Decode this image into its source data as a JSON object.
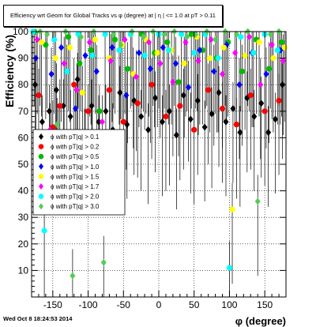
{
  "chart_data": {
    "type": "scatter",
    "title": "Efficiency wrt Geom for Global Tracks vs φ (degree) at |  η  | <= 1.0 at pT > 0.11",
    "xlabel": "φ (degree)",
    "ylabel": "Efficiency (%)",
    "xlim": [
      -180,
      180
    ],
    "ylim": [
      0,
      100
    ],
    "xticks": [
      -150,
      -100,
      -50,
      0,
      50,
      100,
      150
    ],
    "yticks": [
      10,
      20,
      30,
      40,
      50,
      60,
      70,
      80,
      90,
      100
    ],
    "grid": true,
    "legend_position": "left-middle",
    "series": [
      {
        "name": "ϕ with pT|q| > 0.1",
        "color": "#000000",
        "marker": "diamond",
        "points": [
          [
            -175,
            80
          ],
          [
            -165,
            66
          ],
          [
            -155,
            70
          ],
          [
            -145,
            78
          ],
          [
            -135,
            72
          ],
          [
            -125,
            68
          ],
          [
            -115,
            82
          ],
          [
            -105,
            61
          ],
          [
            -95,
            72
          ],
          [
            -85,
            66
          ],
          [
            -75,
            70
          ],
          [
            -65,
            63
          ],
          [
            -55,
            77
          ],
          [
            -45,
            65
          ],
          [
            -35,
            74
          ],
          [
            -25,
            68
          ],
          [
            -15,
            63
          ],
          [
            -5,
            75
          ],
          [
            5,
            66
          ],
          [
            15,
            70
          ],
          [
            25,
            61
          ],
          [
            35,
            76
          ],
          [
            45,
            67
          ],
          [
            55,
            74
          ],
          [
            65,
            64
          ],
          [
            75,
            69
          ],
          [
            85,
            77
          ],
          [
            95,
            66
          ],
          [
            105,
            71
          ],
          [
            115,
            62
          ],
          [
            125,
            75
          ],
          [
            135,
            68
          ],
          [
            145,
            73
          ],
          [
            155,
            62
          ],
          [
            165,
            67
          ],
          [
            175,
            80
          ]
        ]
      },
      {
        "name": "ϕ with pT|q| > 0.2",
        "color": "#ff0000",
        "marker": "circle",
        "points": [
          [
            -170,
            76
          ],
          [
            -150,
            64
          ],
          [
            -140,
            72
          ],
          [
            -120,
            80
          ],
          [
            -100,
            70
          ],
          [
            -85,
            61
          ],
          [
            -70,
            78
          ],
          [
            -50,
            66
          ],
          [
            -30,
            73
          ],
          [
            -10,
            80
          ],
          [
            10,
            68
          ],
          [
            30,
            72
          ],
          [
            50,
            63
          ],
          [
            70,
            78
          ],
          [
            90,
            71
          ],
          [
            110,
            65
          ],
          [
            130,
            76
          ],
          [
            150,
            70
          ],
          [
            170,
            74
          ]
        ]
      },
      {
        "name": "ϕ with pT|q| > 0.5",
        "color": "#00bb00",
        "marker": "circle",
        "points": [
          [
            -176,
            100
          ],
          [
            -160,
            95
          ],
          [
            -142,
            62
          ],
          [
            -128,
            98
          ],
          [
            -112,
            88
          ],
          [
            -96,
            93
          ],
          [
            -84,
            70
          ],
          [
            -62,
            97
          ],
          [
            -44,
            86
          ],
          [
            -24,
            99
          ],
          [
            -6,
            92
          ],
          [
            12,
            96
          ],
          [
            28,
            81
          ],
          [
            46,
            99
          ],
          [
            62,
            93
          ],
          [
            82,
            90
          ],
          [
            98,
            96
          ],
          [
            118,
            85
          ],
          [
            138,
            97
          ],
          [
            156,
            86
          ],
          [
            174,
            96
          ]
        ]
      },
      {
        "name": "ϕ with pT|q| > 1.0",
        "color": "#0000ff",
        "marker": "diamond",
        "points": [
          [
            -174,
            90
          ],
          [
            -152,
            84
          ],
          [
            -138,
            94
          ],
          [
            -118,
            71
          ],
          [
            -104,
            91
          ],
          [
            -88,
            85
          ],
          [
            -66,
            94
          ],
          [
            -46,
            76
          ],
          [
            -28,
            92
          ],
          [
            -12,
            86
          ],
          [
            6,
            94
          ],
          [
            24,
            88
          ],
          [
            42,
            79
          ],
          [
            58,
            93
          ],
          [
            78,
            85
          ],
          [
            96,
            95
          ],
          [
            114,
            80
          ],
          [
            132,
            92
          ],
          [
            152,
            84
          ],
          [
            172,
            93
          ]
        ]
      },
      {
        "name": "ϕ with pT|q| > 1.5",
        "color": "#ffff00",
        "marker": "circle",
        "points": [
          [
            -166,
            96
          ],
          [
            -146,
            90
          ],
          [
            -126,
            94
          ],
          [
            -108,
            77
          ],
          [
            -90,
            97
          ],
          [
            -70,
            90
          ],
          [
            -52,
            95
          ],
          [
            -36,
            84
          ],
          [
            -18,
            97
          ],
          [
            -2,
            92
          ],
          [
            18,
            93
          ],
          [
            36,
            88
          ],
          [
            54,
            98
          ],
          [
            72,
            90
          ],
          [
            92,
            94
          ],
          [
            104,
            33
          ],
          [
            122,
            91
          ],
          [
            142,
            96
          ],
          [
            162,
            90
          ],
          [
            178,
            94
          ]
        ]
      },
      {
        "name": "ϕ with pT|q| > 1.7",
        "color": "#ff00ff",
        "marker": "diamond",
        "points": [
          [
            -172,
            97
          ],
          [
            -154,
            63
          ],
          [
            -134,
            88
          ],
          [
            -116,
            78
          ],
          [
            -98,
            96
          ],
          [
            -80,
            66
          ],
          [
            -68,
            89
          ],
          [
            -48,
            97
          ],
          [
            -32,
            83
          ],
          [
            -14,
            96
          ],
          [
            2,
            88
          ],
          [
            20,
            81
          ],
          [
            38,
            96
          ],
          [
            56,
            89
          ],
          [
            74,
            97
          ],
          [
            90,
            84
          ],
          [
            108,
            92
          ],
          [
            128,
            98
          ],
          [
            144,
            80
          ],
          [
            160,
            95
          ],
          [
            176,
            89
          ]
        ]
      },
      {
        "name": "ϕ with pT|q| > 2.0",
        "color": "#00ffff",
        "marker": "circle",
        "points": [
          [
            -178,
            100
          ],
          [
            -162,
            25
          ],
          [
            -148,
            97
          ],
          [
            -130,
            85
          ],
          [
            -114,
            99
          ],
          [
            -94,
            91
          ],
          [
            -76,
            99
          ],
          [
            -56,
            93
          ],
          [
            -40,
            99
          ],
          [
            -20,
            91
          ],
          [
            0,
            99
          ],
          [
            14,
            93
          ],
          [
            32,
            99
          ],
          [
            50,
            92
          ],
          [
            66,
            99
          ],
          [
            84,
            90
          ],
          [
            100,
            11
          ],
          [
            116,
            98
          ],
          [
            134,
            92
          ],
          [
            150,
            99
          ],
          [
            168,
            93
          ]
        ]
      },
      {
        "name": "ϕ with pT|q| > 3.0",
        "color": "#55cc55",
        "marker": "diamond",
        "points": [
          [
            -168,
            100
          ],
          [
            -158,
            99
          ],
          [
            -144,
            65
          ],
          [
            -132,
            100
          ],
          [
            -122,
            8
          ],
          [
            -110,
            98
          ],
          [
            -92,
            100
          ],
          [
            -78,
            13
          ],
          [
            -64,
            99
          ],
          [
            -54,
            95
          ],
          [
            -38,
            100
          ],
          [
            -22,
            98
          ],
          [
            -8,
            100
          ],
          [
            8,
            99
          ],
          [
            22,
            100
          ],
          [
            40,
            98
          ],
          [
            52,
            99
          ],
          [
            68,
            100
          ],
          [
            80,
            97
          ],
          [
            94,
            100
          ],
          [
            110,
            99
          ],
          [
            126,
            100
          ],
          [
            140,
            36
          ],
          [
            158,
            99
          ],
          [
            170,
            100
          ]
        ]
      }
    ]
  },
  "title_text": "Efficiency wrt Geom for Global Tracks vs φ (degree) at |  η  | <= 1.0 at pT > 0.11",
  "footer_timestamp": "Wed Oct  8 18:24:53 2014"
}
